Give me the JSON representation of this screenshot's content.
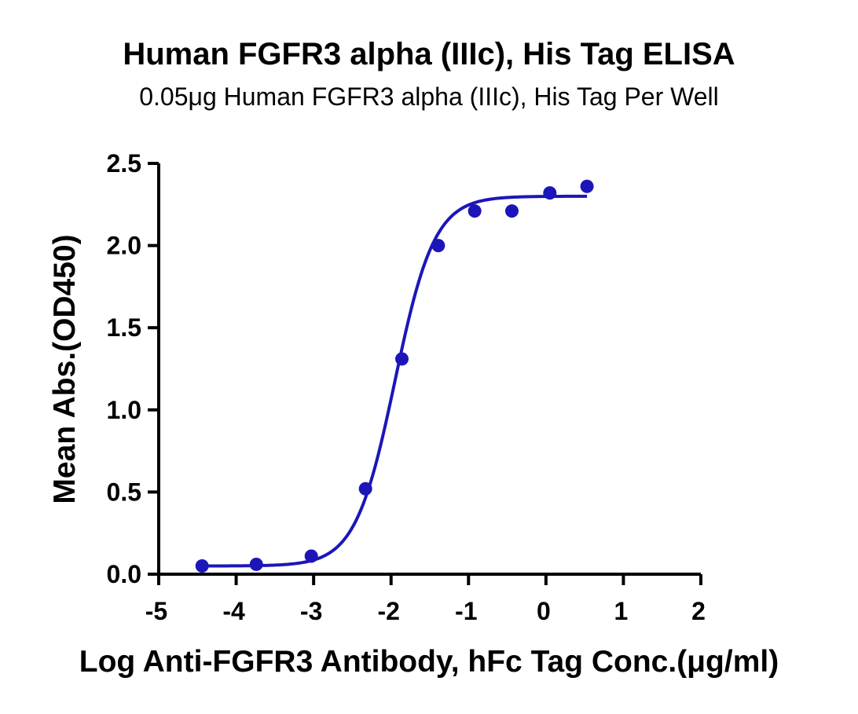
{
  "chart_data": {
    "type": "scatter",
    "title": "Human FGFR3 alpha (IIIc), His Tag ELISA",
    "subtitle": "0.05μg Human FGFR3 alpha (IIIc), His Tag Per Well",
    "xlabel": "Log  Anti-FGFR3 Antibody, hFc Tag Conc.(μg/ml)",
    "ylabel": "Mean Abs.(OD450)",
    "xlim": [
      -5,
      2
    ],
    "ylim": [
      0,
      2.5
    ],
    "x_ticks": [
      "-5",
      "-4",
      "-3",
      "-2",
      "-1",
      "0",
      "1",
      "2"
    ],
    "y_ticks": [
      "0.0",
      "0.5",
      "1.0",
      "1.5",
      "2.0",
      "2.5"
    ],
    "grid": false,
    "legend": "none",
    "series": [
      {
        "points": [
          {
            "x": -4.44,
            "y": 0.05
          },
          {
            "x": -3.74,
            "y": 0.06
          },
          {
            "x": -3.03,
            "y": 0.11
          },
          {
            "x": -2.33,
            "y": 0.52
          },
          {
            "x": -1.86,
            "y": 1.31
          },
          {
            "x": -1.39,
            "y": 2.0
          },
          {
            "x": -0.92,
            "y": 2.21
          },
          {
            "x": -0.44,
            "y": 2.21
          },
          {
            "x": 0.05,
            "y": 2.32
          },
          {
            "x": 0.53,
            "y": 2.36
          }
        ],
        "fit": {
          "model": "4PL",
          "bottom": 0.05,
          "top": 2.3,
          "log_ec50": -1.95,
          "hill_slope": 1.7,
          "x_range": [
            -4.44,
            0.53
          ]
        }
      }
    ],
    "colors": {
      "series": "#1c16b8",
      "axis": "#000000"
    }
  }
}
